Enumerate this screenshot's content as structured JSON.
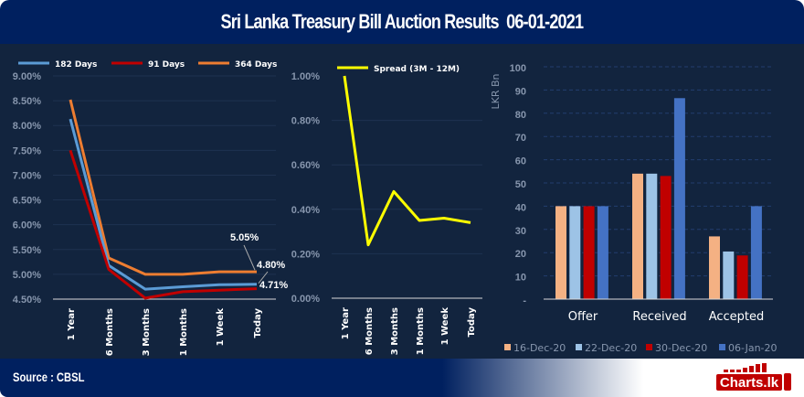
{
  "title": "Sri Lanka Treasury Bill Auction Results  06-01-2021",
  "footer": {
    "source": "Source : CBSL",
    "logo_text": "Charts.lk"
  },
  "chart_data": [
    {
      "type": "line",
      "categories": [
        "1 Year",
        "6 Months",
        "3 Months",
        "1 Months",
        "1 Week",
        "Today"
      ],
      "yticks": [
        "4.50%",
        "5.00%",
        "5.50%",
        "6.00%",
        "6.50%",
        "7.00%",
        "7.50%",
        "8.00%",
        "8.50%",
        "9.00%"
      ],
      "ylim": [
        4.5,
        9.0
      ],
      "grid": true,
      "legend": "top",
      "series": [
        {
          "name": "182 Days",
          "color": "#5b9bd5",
          "values": [
            8.13,
            5.18,
            4.7,
            4.75,
            4.79,
            4.8
          ]
        },
        {
          "name": "91 Days",
          "color": "#c00000",
          "values": [
            7.5,
            5.1,
            4.52,
            4.65,
            4.68,
            4.71
          ]
        },
        {
          "name": "364 Days",
          "color": "#ed7d31",
          "values": [
            8.52,
            5.33,
            5.0,
            5.0,
            5.05,
            5.05
          ]
        }
      ],
      "data_labels": [
        "5.05%",
        "4.80%",
        "4.71%"
      ]
    },
    {
      "type": "line",
      "categories": [
        "1 Year",
        "6 Months",
        "3 Months",
        "1 Months",
        "1 Week",
        "Today"
      ],
      "yticks": [
        "0.00%",
        "0.20%",
        "0.40%",
        "0.60%",
        "0.80%",
        "1.00%"
      ],
      "ylim": [
        0,
        1.0
      ],
      "grid": true,
      "legend": "top",
      "series": [
        {
          "name": "Spread (3M - 12M)",
          "color": "#ffff00",
          "values": [
            1.0,
            0.24,
            0.48,
            0.35,
            0.36,
            0.34
          ]
        }
      ]
    },
    {
      "type": "bar",
      "categories": [
        "Offer",
        "Received",
        "Accepted"
      ],
      "ylabel": "LKR Bn",
      "yticks": [
        "-",
        "10",
        "20",
        "30",
        "40",
        "50",
        "60",
        "70",
        "80",
        "90",
        "100"
      ],
      "ylim": [
        0,
        100
      ],
      "grid": true,
      "legend": "bottom",
      "series": [
        {
          "name": "16-Dec-20",
          "color": "#f4b183",
          "values": [
            40,
            54,
            27
          ]
        },
        {
          "name": "22-Dec-20",
          "color": "#9dc3e6",
          "values": [
            40,
            54,
            20.5
          ]
        },
        {
          "name": "30-Dec-20",
          "color": "#c00000",
          "values": [
            40,
            53,
            18.8
          ]
        },
        {
          "name": "06-Jan-20",
          "color": "#4472c4",
          "values": [
            40,
            86.5,
            40
          ]
        }
      ]
    }
  ]
}
